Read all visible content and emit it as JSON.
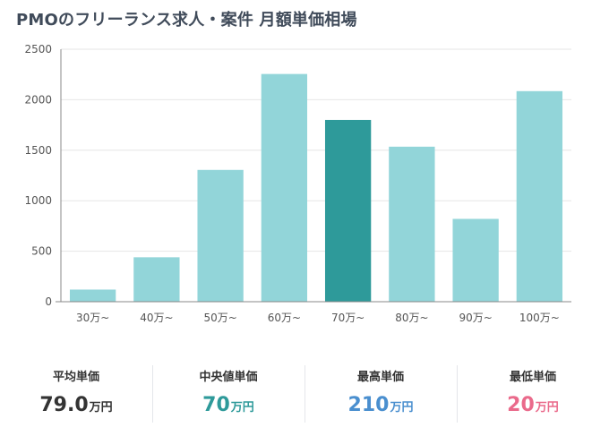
{
  "page_title": "PMOのフリーランス求人・案件 月額単価相場",
  "chart_data": {
    "type": "bar",
    "categories": [
      "30万~",
      "40万~",
      "50万~",
      "60万~",
      "70万~",
      "80万~",
      "90万~",
      "100万~"
    ],
    "values": [
      120,
      440,
      1305,
      2255,
      1800,
      1535,
      820,
      2085
    ],
    "highlight_category": "70万~",
    "ylim": [
      0,
      2500
    ],
    "yticks": [
      0,
      500,
      1000,
      1500,
      2000,
      2500
    ],
    "grid": true,
    "colors": {
      "bar": "#92d5d9",
      "highlight": "#2e9a9a",
      "grid": "#e6e6e6",
      "axis": "#888888"
    }
  },
  "stats": [
    {
      "label": "平均単価",
      "value": "79.0",
      "unit": "万円",
      "color": "#333333"
    },
    {
      "label": "中央値単価",
      "value": "70",
      "unit": "万円",
      "color": "#2e9a9a"
    },
    {
      "label": "最高単価",
      "value": "210",
      "unit": "万円",
      "color": "#4a8fcf"
    },
    {
      "label": "最低単価",
      "value": "20",
      "unit": "万円",
      "color": "#ea6a8b"
    }
  ]
}
